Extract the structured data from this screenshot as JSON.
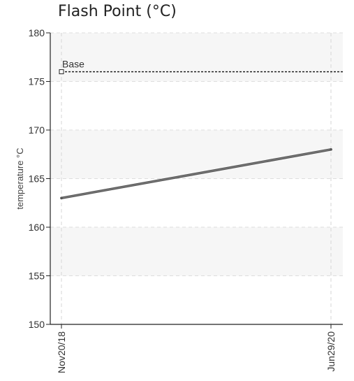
{
  "chart_data": {
    "type": "line",
    "title": "Flash Point (°C)",
    "ylabel": "temperature °C",
    "xlabel": "",
    "x": [
      "Nov20/18",
      "Jun29/20"
    ],
    "ylim": [
      150,
      180
    ],
    "yticks": [
      150,
      155,
      160,
      165,
      170,
      175,
      180
    ],
    "series": [
      {
        "values": [
          163,
          168
        ],
        "color": "#555555"
      }
    ],
    "reference_lines": [
      {
        "label": "Base",
        "value": 176,
        "style": "dashed",
        "color": "#222222"
      }
    ],
    "grid": true,
    "band_color": "#f6f6f6"
  }
}
